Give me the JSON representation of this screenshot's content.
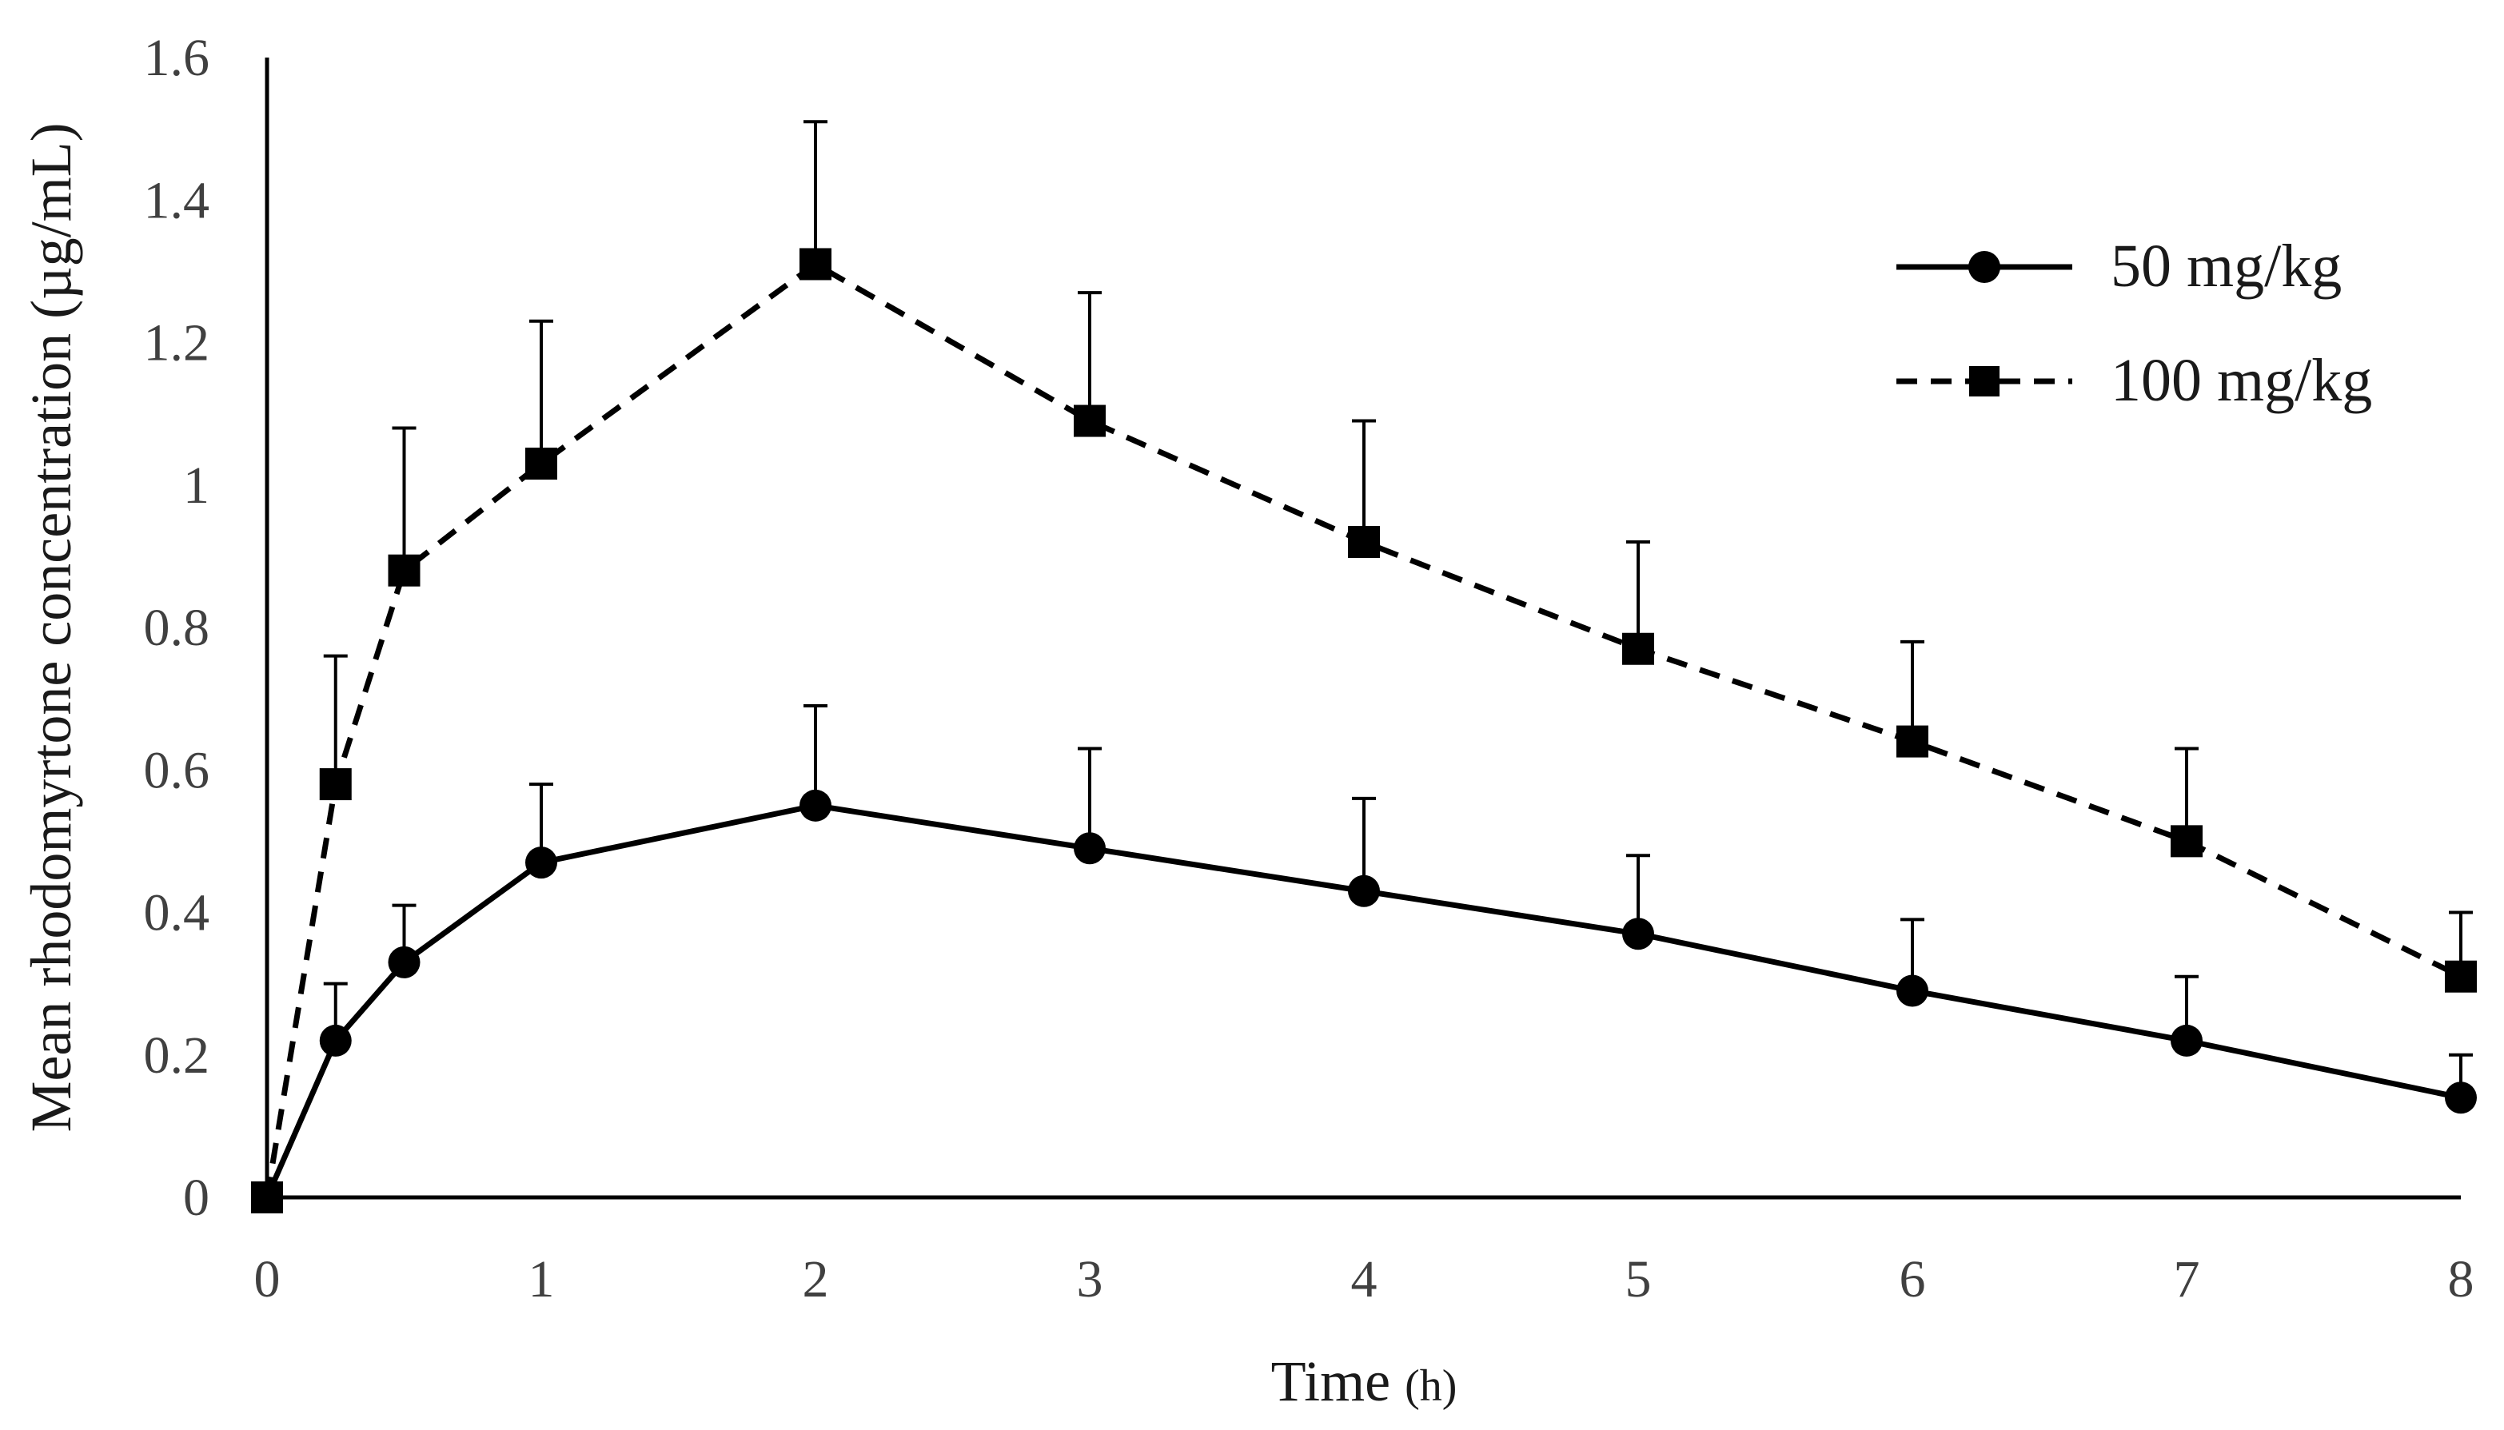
{
  "chart_data": {
    "type": "line",
    "title": "",
    "xlabel": "Time",
    "xlabel_unit": "(h)",
    "ylabel": "Mean  rhodomyrtone concentration (µg/mL)",
    "xlim": [
      0,
      8
    ],
    "ylim": [
      0,
      1.6
    ],
    "grid": false,
    "legend_position": "top-right",
    "x_ticks": [
      "0",
      "1",
      "2",
      "3",
      "4",
      "5",
      "6",
      "7",
      "8"
    ],
    "y_ticks": [
      "0",
      "0.2",
      "0.4",
      "0.6",
      "0.8",
      "1",
      "1.2",
      "1.4",
      "1.6"
    ],
    "x": [
      0,
      0.25,
      0.5,
      1,
      2,
      3,
      4,
      5,
      6,
      7,
      8
    ],
    "series": [
      {
        "name": "50 mg/kg",
        "marker": "circle",
        "line_style": "solid",
        "color": "#000000",
        "values": [
          0.0,
          0.22,
          0.33,
          0.47,
          0.55,
          0.49,
          0.43,
          0.37,
          0.29,
          0.22,
          0.14
        ],
        "error": [
          0.0,
          0.08,
          0.08,
          0.11,
          0.14,
          0.14,
          0.13,
          0.11,
          0.1,
          0.09,
          0.06
        ]
      },
      {
        "name": "100 mg/kg",
        "marker": "square",
        "line_style": "dashed",
        "color": "#000000",
        "values": [
          0.0,
          0.58,
          0.88,
          1.03,
          1.31,
          1.09,
          0.92,
          0.77,
          0.64,
          0.5,
          0.31
        ],
        "error": [
          0.0,
          0.18,
          0.2,
          0.2,
          0.2,
          0.18,
          0.17,
          0.15,
          0.14,
          0.13,
          0.09
        ]
      }
    ]
  }
}
